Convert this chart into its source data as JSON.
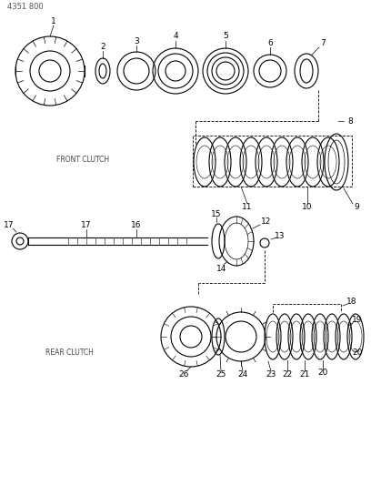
{
  "title": "4351 800",
  "bg_color": "#ffffff",
  "line_color": "#000000",
  "label_color": "#000000",
  "front_clutch_label": "FRONT CLUTCH",
  "rear_clutch_label": "REAR CLUTCH",
  "figsize": [
    4.08,
    5.33
  ],
  "dpi": 100
}
